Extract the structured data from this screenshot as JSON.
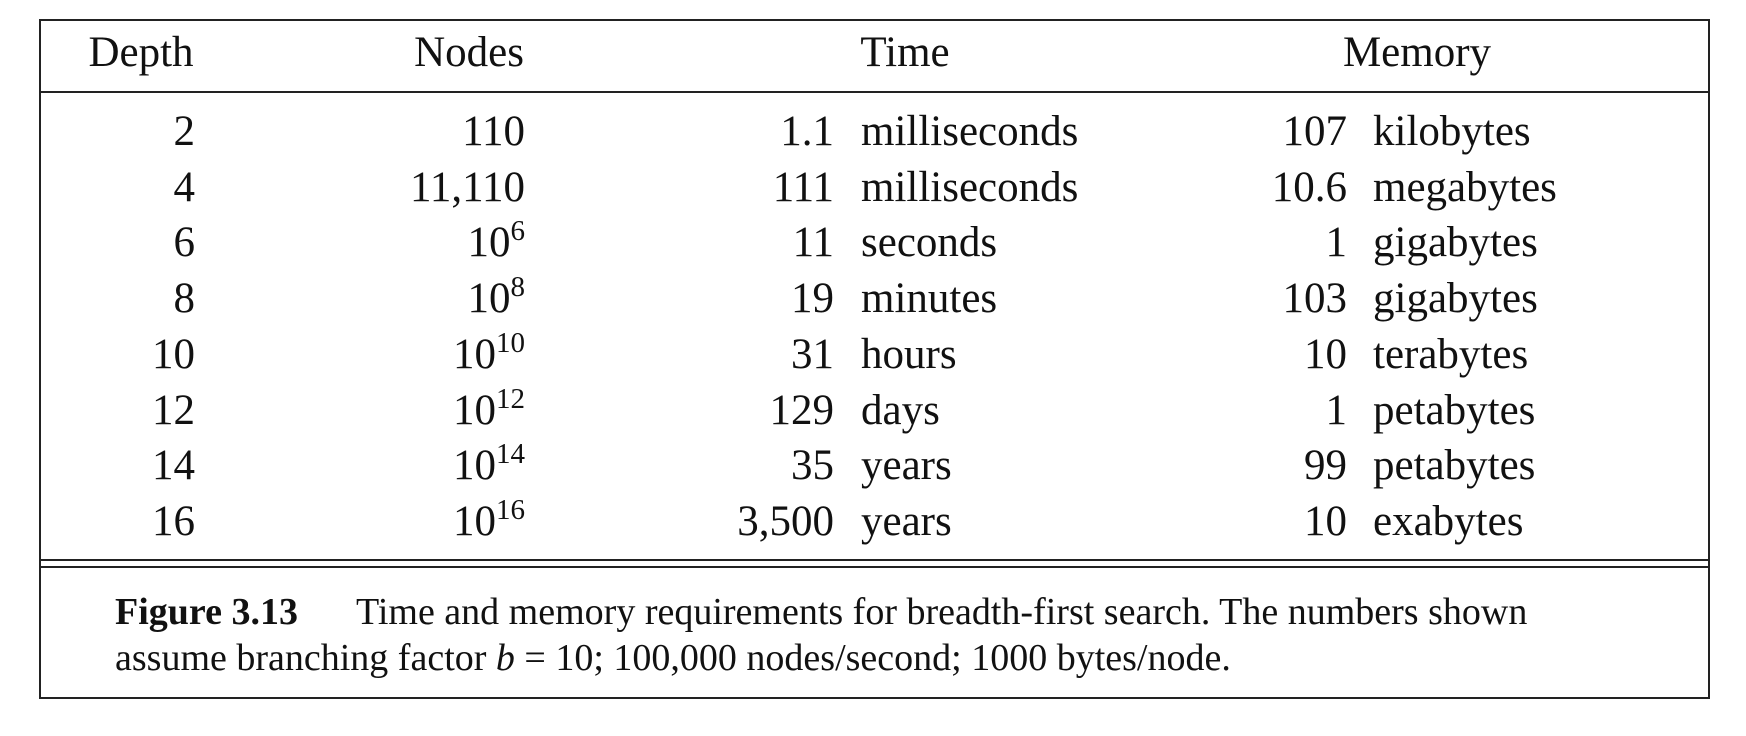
{
  "table": {
    "headers": [
      "Depth",
      "Nodes",
      "Time",
      "Memory"
    ],
    "rows": [
      [
        "2",
        "110",
        "1.1",
        "milliseconds",
        "107",
        "kilobytes"
      ],
      [
        "4",
        "11,110",
        "111",
        "milliseconds",
        "10.6",
        "megabytes"
      ],
      [
        "6",
        {
          "base": "10",
          "exponent": "6"
        },
        "11",
        "seconds",
        "1",
        "gigabytes"
      ],
      [
        "8",
        {
          "base": "10",
          "exponent": "8"
        },
        "19",
        "minutes",
        "103",
        "gigabytes"
      ],
      [
        "10",
        {
          "base": "10",
          "exponent": "10"
        },
        "31",
        "hours",
        "10",
        "terabytes"
      ],
      [
        "12",
        {
          "base": "10",
          "exponent": "12"
        },
        "129",
        "days",
        "1",
        "petabytes"
      ],
      [
        "14",
        {
          "base": "10",
          "exponent": "14"
        },
        "35",
        "years",
        "99",
        "petabytes"
      ],
      [
        "16",
        {
          "base": "10",
          "exponent": "16"
        },
        "3,500",
        "years",
        "10",
        "exabytes"
      ]
    ]
  },
  "caption": {
    "label": "Figure 3.13",
    "line1": "Time and memory requirements for breadth-first search. The numbers shown",
    "line2_before": "assume branching factor ",
    "variable": "b",
    "line2_after": " = 10; 100,000 nodes/second; 1000 bytes/node."
  }
}
